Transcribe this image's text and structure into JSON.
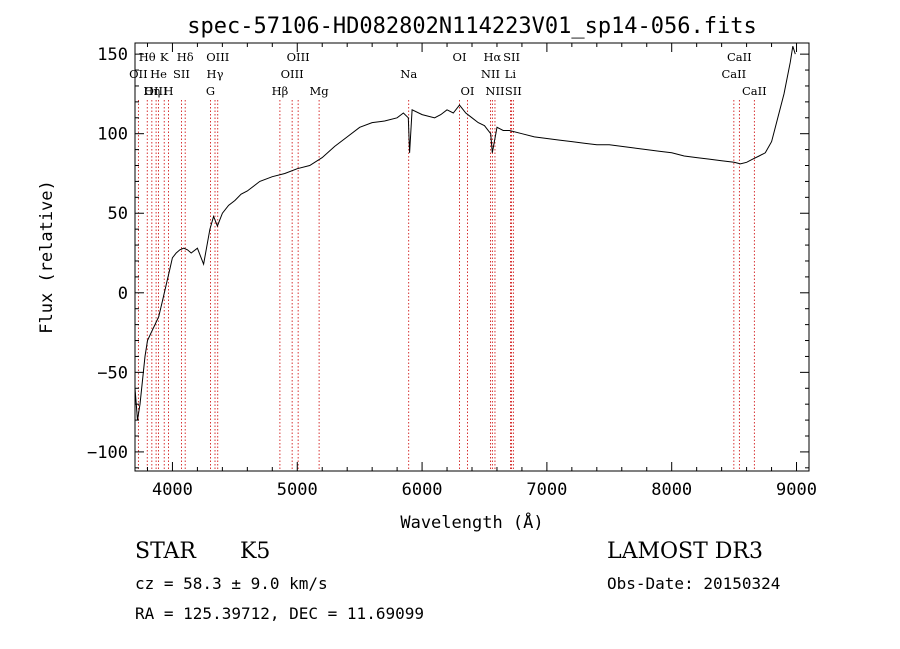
{
  "chart_data": {
    "type": "line",
    "title": "spec-57106-HD082802N114223V01_sp14-056.fits",
    "xlabel": "Wavelength (Å)",
    "ylabel": "Flux (relative)",
    "xlim": [
      3700,
      9100
    ],
    "ylim": [
      -112,
      157
    ],
    "xticks": [
      4000,
      5000,
      6000,
      7000,
      8000,
      9000
    ],
    "yticks": [
      -100,
      -50,
      0,
      50,
      100,
      150
    ],
    "grid": false,
    "series": [
      {
        "x": [
          3700,
          3720,
          3740,
          3760,
          3780,
          3800,
          3830,
          3860,
          3890,
          3920,
          3950,
          3980,
          4000,
          4030,
          4060,
          4090,
          4120,
          4150,
          4200,
          4250,
          4300,
          4330,
          4360,
          4400,
          4450,
          4500,
          4550,
          4600,
          4700,
          4800,
          4900,
          5000,
          5100,
          5200,
          5300,
          5400,
          5500,
          5600,
          5700,
          5800,
          5850,
          5890,
          5900,
          5920,
          6000,
          6100,
          6150,
          6200,
          6250,
          6300,
          6350,
          6400,
          6450,
          6500,
          6550,
          6563,
          6600,
          6650,
          6700,
          6800,
          6900,
          7000,
          7100,
          7200,
          7300,
          7400,
          7500,
          7600,
          7700,
          7800,
          7900,
          8000,
          8100,
          8200,
          8300,
          8400,
          8500,
          8550,
          8600,
          8650,
          8700,
          8750,
          8800,
          8850,
          8900,
          8950,
          8970,
          8990
        ],
        "y": [
          -60,
          -80,
          -70,
          -55,
          -40,
          -30,
          -25,
          -20,
          -15,
          -5,
          5,
          15,
          22,
          25,
          27,
          28,
          27,
          25,
          28,
          18,
          40,
          48,
          42,
          50,
          55,
          58,
          62,
          64,
          70,
          73,
          75,
          78,
          80,
          85,
          92,
          98,
          104,
          107,
          108,
          110,
          113,
          110,
          88,
          115,
          112,
          110,
          112,
          115,
          113,
          118,
          113,
          110,
          107,
          105,
          100,
          88,
          104,
          102,
          102,
          100,
          98,
          97,
          96,
          95,
          94,
          93,
          93,
          92,
          91,
          90,
          89,
          88,
          86,
          85,
          84,
          83,
          82,
          81,
          82,
          84,
          86,
          88,
          95,
          110,
          125,
          145,
          155,
          150
        ]
      }
    ],
    "lines": [
      {
        "name": "Hθ",
        "x": 3798,
        "row": 0
      },
      {
        "name": "OII",
        "x": 3727,
        "row": 1
      },
      {
        "name": "OIII",
        "x": 3869,
        "row": 2
      },
      {
        "name": "Hη",
        "x": 3835,
        "row": 2
      },
      {
        "name": "K",
        "x": 3934,
        "row": 0
      },
      {
        "name": "He",
        "x": 3889,
        "row": 1
      },
      {
        "name": "H",
        "x": 3969,
        "row": 2
      },
      {
        "name": "SII",
        "x": 4072,
        "row": 1
      },
      {
        "name": "Hδ",
        "x": 4102,
        "row": 0
      },
      {
        "name": "OIII",
        "x": 4363,
        "row": 0
      },
      {
        "name": "Hγ",
        "x": 4341,
        "row": 1
      },
      {
        "name": "G",
        "x": 4305,
        "row": 2
      },
      {
        "name": "Hβ",
        "x": 4861,
        "row": 2
      },
      {
        "name": "OIII",
        "x": 5007,
        "row": 0
      },
      {
        "name": "OIII",
        "x": 4959,
        "row": 1
      },
      {
        "name": "Mg",
        "x": 5175,
        "row": 2
      },
      {
        "name": "Na",
        "x": 5893,
        "row": 1
      },
      {
        "name": "OI",
        "x": 6300,
        "row": 0
      },
      {
        "name": "OI",
        "x": 6364,
        "row": 2
      },
      {
        "name": "Hα",
        "x": 6563,
        "row": 0
      },
      {
        "name": "NII",
        "x": 6548,
        "row": 1
      },
      {
        "name": "NII",
        "x": 6584,
        "row": 2
      },
      {
        "name": "SII",
        "x": 6717,
        "row": 0
      },
      {
        "name": "Li",
        "x": 6708,
        "row": 1
      },
      {
        "name": "SII",
        "x": 6731,
        "row": 2
      },
      {
        "name": "CaII",
        "x": 8542,
        "row": 0
      },
      {
        "name": "CaII",
        "x": 8498,
        "row": 1
      },
      {
        "name": "CaII",
        "x": 8662,
        "row": 2
      }
    ],
    "line_color": "#cc0000"
  },
  "info": {
    "class": "STAR",
    "subclass": "K5",
    "survey": "LAMOST DR3",
    "cz": "cz = 58.3 ± 9.0 km/s",
    "obs_date": "Obs-Date: 20150324",
    "coords": "RA = 125.39712, DEC =  11.69099"
  }
}
